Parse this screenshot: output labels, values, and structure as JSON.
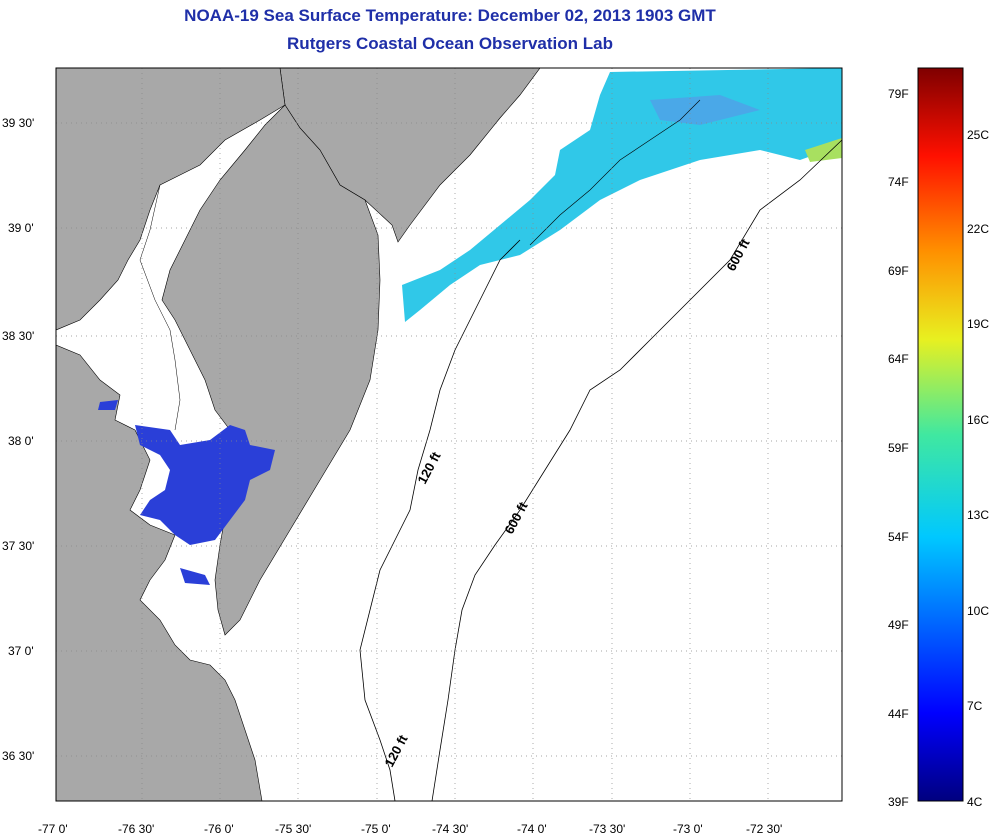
{
  "title": {
    "line1": "NOAA-19 Sea Surface Temperature:  December 02, 2013 1903 GMT",
    "line2": "Rutgers Coastal Ocean Observation Lab"
  },
  "map": {
    "lat_labels": [
      "39 30'",
      "39 0'",
      "38 30'",
      "38 0'",
      "37 30'",
      "37 0'",
      "36 30'"
    ],
    "lon_labels": [
      "-77 0'",
      "-76 30'",
      "-76 0'",
      "-75 30'",
      "-75 0'",
      "-74 30'",
      "-74 0'",
      "-73 30'",
      "-73 0'",
      "-72 30'"
    ],
    "contour_labels": {
      "c120_a": "120 ft",
      "c120_b": "120 ft",
      "c600_a": "600 ft",
      "c600_b": "600 ft"
    },
    "colors": {
      "land": "#a8a8a8",
      "water": "#ffffff",
      "sst_cold": "#2a3fd8",
      "sst_warm": "#30c8e8"
    }
  },
  "colorbar": {
    "fahrenheit": [
      "79F",
      "74F",
      "69F",
      "64F",
      "59F",
      "54F",
      "49F",
      "44F",
      "39F"
    ],
    "celsius": [
      "25C",
      "22C",
      "19C",
      "16C",
      "13C",
      "10C",
      "7C",
      "4C"
    ]
  }
}
